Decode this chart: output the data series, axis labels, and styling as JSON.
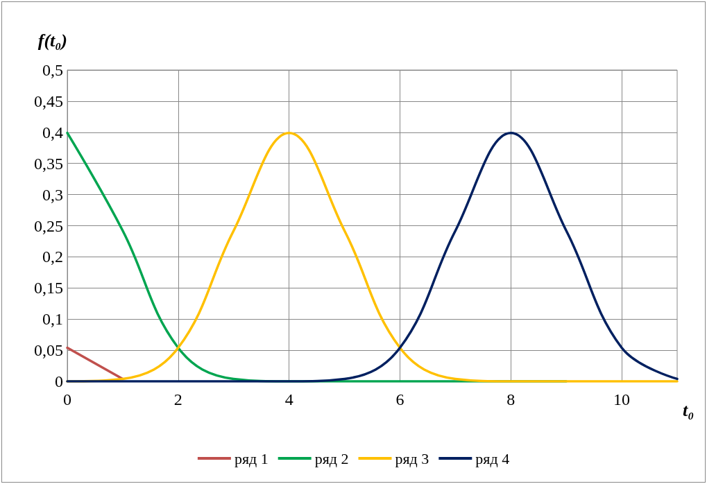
{
  "chart_data": {
    "type": "line",
    "xlabel": "t₀",
    "ylabel": "f(t₀)",
    "x": [
      0,
      1,
      2,
      3,
      4,
      5,
      6,
      7,
      8,
      9,
      10,
      11
    ],
    "series": [
      {
        "name": "ряд 1",
        "color": "#c0504d",
        "values": [
          0.054,
          0.004,
          null,
          null,
          null,
          null,
          null,
          null,
          null,
          null,
          null,
          null
        ]
      },
      {
        "name": "ряд 2",
        "color": "#00a550",
        "values": [
          0.399,
          0.242,
          0.054,
          0.004,
          0,
          0,
          0,
          0,
          0,
          0,
          null,
          null
        ]
      },
      {
        "name": "ряд 3",
        "color": "#ffc000",
        "values": [
          0,
          0.004,
          0.054,
          0.242,
          0.399,
          0.242,
          0.054,
          0.004,
          0,
          0,
          0,
          0
        ]
      },
      {
        "name": "ряд 4",
        "color": "#002060",
        "values": [
          0,
          0,
          0,
          0,
          0,
          0.004,
          0.054,
          0.242,
          0.399,
          0.242,
          0.054,
          0.004
        ]
      }
    ],
    "xlim": [
      0,
      11
    ],
    "xticks": [
      0,
      2,
      4,
      6,
      8,
      10
    ],
    "ylim": [
      0,
      0.5
    ],
    "yticks": [
      0,
      {
        "value": 0.05,
        "label": "0,05"
      },
      {
        "value": 0.1,
        "label": "0,1"
      },
      {
        "value": 0.15,
        "label": "0,15"
      },
      {
        "value": 0.2,
        "label": "0,2"
      },
      {
        "value": 0.25,
        "label": "0,25"
      },
      {
        "value": 0.3,
        "label": "0,3"
      },
      {
        "value": 0.35,
        "label": "0,35"
      },
      {
        "value": 0.4,
        "label": "0,4"
      },
      {
        "value": 0.45,
        "label": "0,45"
      },
      {
        "value": 0.5,
        "label": "0,5"
      }
    ],
    "grid": true,
    "legend": "bottom",
    "marker": "none",
    "line_style": "solid"
  }
}
